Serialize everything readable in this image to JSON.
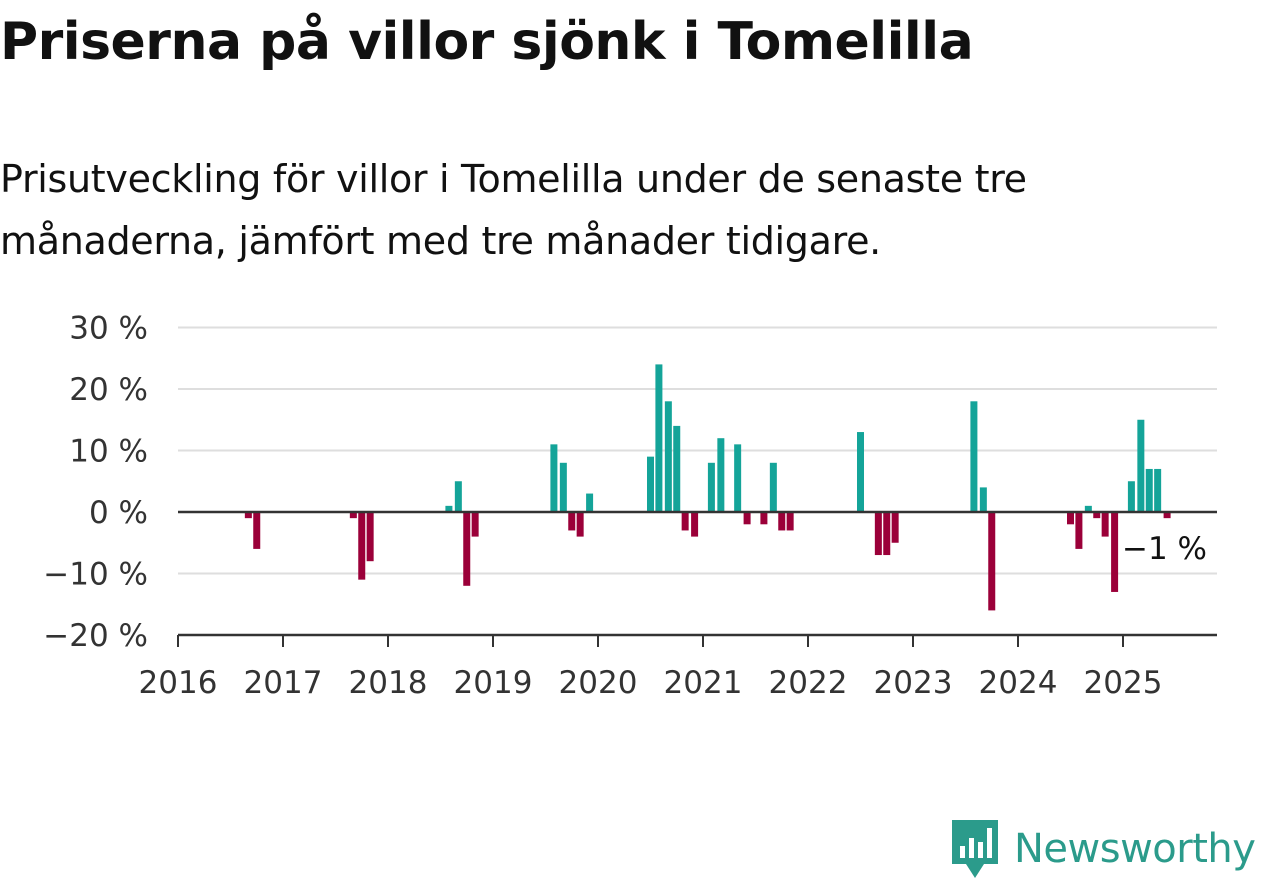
{
  "header": {
    "title": "Priserna på villor sjönk i Tomelilla",
    "subtitle": "Prisutveckling för villor i Tomelilla under de senaste tre månaderna, jämfört med tre månader tidigare."
  },
  "brand": {
    "name": "Newsworthy",
    "icon": "newsworthy-logo-icon",
    "color": "#2b9b8b"
  },
  "chart_data": {
    "type": "bar",
    "x_unit": "year",
    "ylim": [
      -20,
      30
    ],
    "xlim": [
      2016,
      2025.9
    ],
    "y_ticks": [
      {
        "value": 30,
        "label": "30 %"
      },
      {
        "value": 20,
        "label": "20 %"
      },
      {
        "value": 10,
        "label": "10 %"
      },
      {
        "value": 0,
        "label": "0 %"
      },
      {
        "value": -10,
        "label": "−10 %"
      },
      {
        "value": -20,
        "label": "−20 %"
      }
    ],
    "x_ticks": [
      "2016",
      "2017",
      "2018",
      "2019",
      "2020",
      "2021",
      "2022",
      "2023",
      "2024",
      "2025"
    ],
    "grid": true,
    "colors": {
      "positive": "#14a499",
      "negative": "#9b0039",
      "grid": "#dedede",
      "axis": "#333333"
    },
    "annotation": {
      "text": "−1 %"
    },
    "bars": [
      {
        "x": 2016.67,
        "value": -1
      },
      {
        "x": 2016.75,
        "value": -6
      },
      {
        "x": 2017.67,
        "value": -1
      },
      {
        "x": 2017.75,
        "value": -11
      },
      {
        "x": 2017.83,
        "value": -8
      },
      {
        "x": 2018.58,
        "value": 1
      },
      {
        "x": 2018.67,
        "value": 5
      },
      {
        "x": 2018.75,
        "value": -12
      },
      {
        "x": 2018.83,
        "value": -4
      },
      {
        "x": 2019.58,
        "value": 11
      },
      {
        "x": 2019.67,
        "value": 8
      },
      {
        "x": 2019.75,
        "value": -3
      },
      {
        "x": 2019.83,
        "value": -4
      },
      {
        "x": 2019.92,
        "value": 3
      },
      {
        "x": 2020.5,
        "value": 9
      },
      {
        "x": 2020.58,
        "value": 24
      },
      {
        "x": 2020.67,
        "value": 18
      },
      {
        "x": 2020.75,
        "value": 14
      },
      {
        "x": 2020.83,
        "value": -3
      },
      {
        "x": 2020.92,
        "value": -4
      },
      {
        "x": 2021.08,
        "value": 8
      },
      {
        "x": 2021.17,
        "value": 12
      },
      {
        "x": 2021.33,
        "value": 11
      },
      {
        "x": 2021.42,
        "value": -2
      },
      {
        "x": 2021.58,
        "value": -2
      },
      {
        "x": 2021.67,
        "value": 8
      },
      {
        "x": 2021.75,
        "value": -3
      },
      {
        "x": 2021.83,
        "value": -3
      },
      {
        "x": 2022.5,
        "value": 13
      },
      {
        "x": 2022.67,
        "value": -7
      },
      {
        "x": 2022.75,
        "value": -7
      },
      {
        "x": 2022.83,
        "value": -5
      },
      {
        "x": 2023.58,
        "value": 18
      },
      {
        "x": 2023.67,
        "value": 4
      },
      {
        "x": 2023.75,
        "value": -16
      },
      {
        "x": 2024.5,
        "value": -2
      },
      {
        "x": 2024.58,
        "value": -6
      },
      {
        "x": 2024.67,
        "value": 1
      },
      {
        "x": 2024.75,
        "value": -1
      },
      {
        "x": 2024.83,
        "value": -4
      },
      {
        "x": 2024.92,
        "value": -13
      },
      {
        "x": 2025.08,
        "value": 5
      },
      {
        "x": 2025.17,
        "value": 15
      },
      {
        "x": 2025.25,
        "value": 7
      },
      {
        "x": 2025.33,
        "value": 7
      },
      {
        "x": 2025.42,
        "value": -1
      }
    ]
  }
}
